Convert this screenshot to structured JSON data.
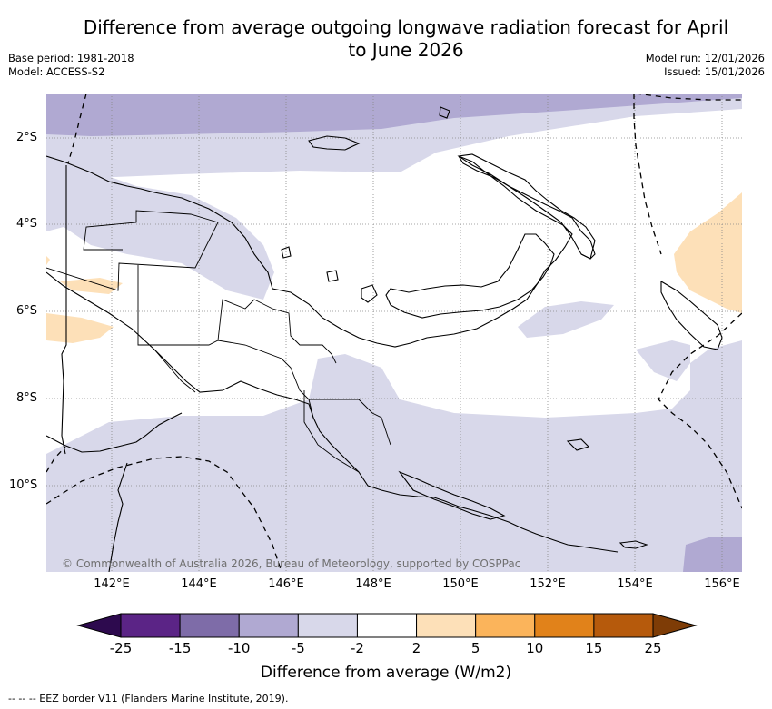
{
  "title": "Difference from average outgoing longwave radiation forecast for April to June 2026",
  "base_period": "Base period: 1981-2018",
  "model": "Model: ACCESS-S2",
  "model_run": "Model run: 12/01/2026",
  "issued": "Issued: 15/01/2026",
  "credit": "© Commonwealth of Australia 2026, Bureau of Meteorology, supported by COSPPac",
  "lat_labels": [
    "2°S",
    "4°S",
    "6°S",
    "8°S",
    "10°S"
  ],
  "lon_labels": [
    "142°E",
    "144°E",
    "146°E",
    "148°E",
    "150°E",
    "152°E",
    "154°E",
    "156°E"
  ],
  "colorbar": {
    "title": "Difference from average (W/m2)",
    "ticks": [
      "-25",
      "-15",
      "-10",
      "-5",
      "-2",
      "2",
      "5",
      "10",
      "15",
      "25"
    ],
    "colors": [
      "#5b2486",
      "#7e6ca8",
      "#b0a9d2",
      "#d8d8ea",
      "#ffffff",
      "#fde0b8",
      "#fbb45b",
      "#e1821a",
      "#b65a0c"
    ],
    "low_extend_color": "#2d0a4e",
    "high_extend_color": "#7e3c06"
  },
  "footnote": "-- -- -- EEZ border V11 (Flanders Marine Institute, 2019)."
}
